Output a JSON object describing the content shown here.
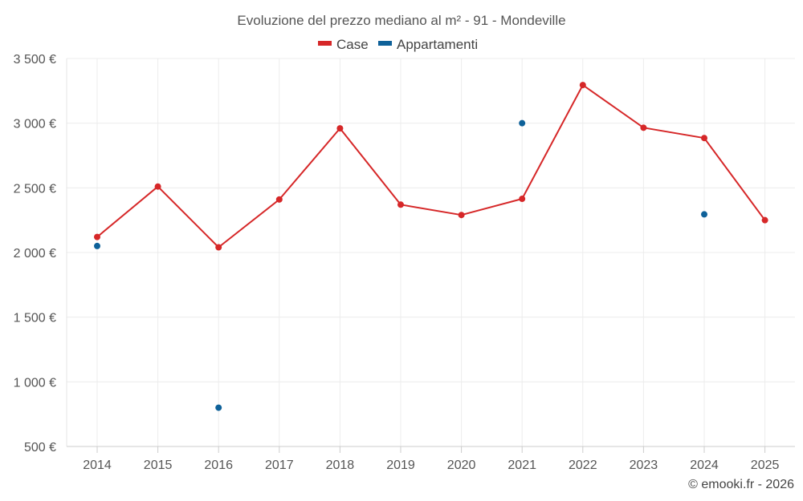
{
  "chart_data": {
    "type": "line",
    "title": "Evoluzione del prezzo mediano al m² - 91 - Mondeville",
    "categories": [
      "2014",
      "2015",
      "2016",
      "2017",
      "2018",
      "2019",
      "2020",
      "2021",
      "2022",
      "2023",
      "2024",
      "2025"
    ],
    "ylim": [
      500,
      3500
    ],
    "yticks": [
      500,
      1000,
      1500,
      2000,
      2500,
      3000,
      3500
    ],
    "ytick_labels": [
      "500 €",
      "1 000 €",
      "1 500 €",
      "2 000 €",
      "2 500 €",
      "3 000 €",
      "3 500 €"
    ],
    "grid": true,
    "legend_position": "top-center",
    "series": [
      {
        "name": "Case",
        "color": "#d62728",
        "style": "line-with-markers",
        "values": [
          2120,
          2510,
          2040,
          2410,
          2960,
          2370,
          2290,
          2415,
          3295,
          2965,
          2885,
          2250
        ]
      },
      {
        "name": "Appartamenti",
        "color": "#0e6199",
        "style": "markers-only",
        "values": [
          2050,
          null,
          800,
          null,
          null,
          null,
          null,
          3000,
          null,
          null,
          2295,
          null
        ]
      }
    ]
  },
  "credit": "© emooki.fr - 2026"
}
